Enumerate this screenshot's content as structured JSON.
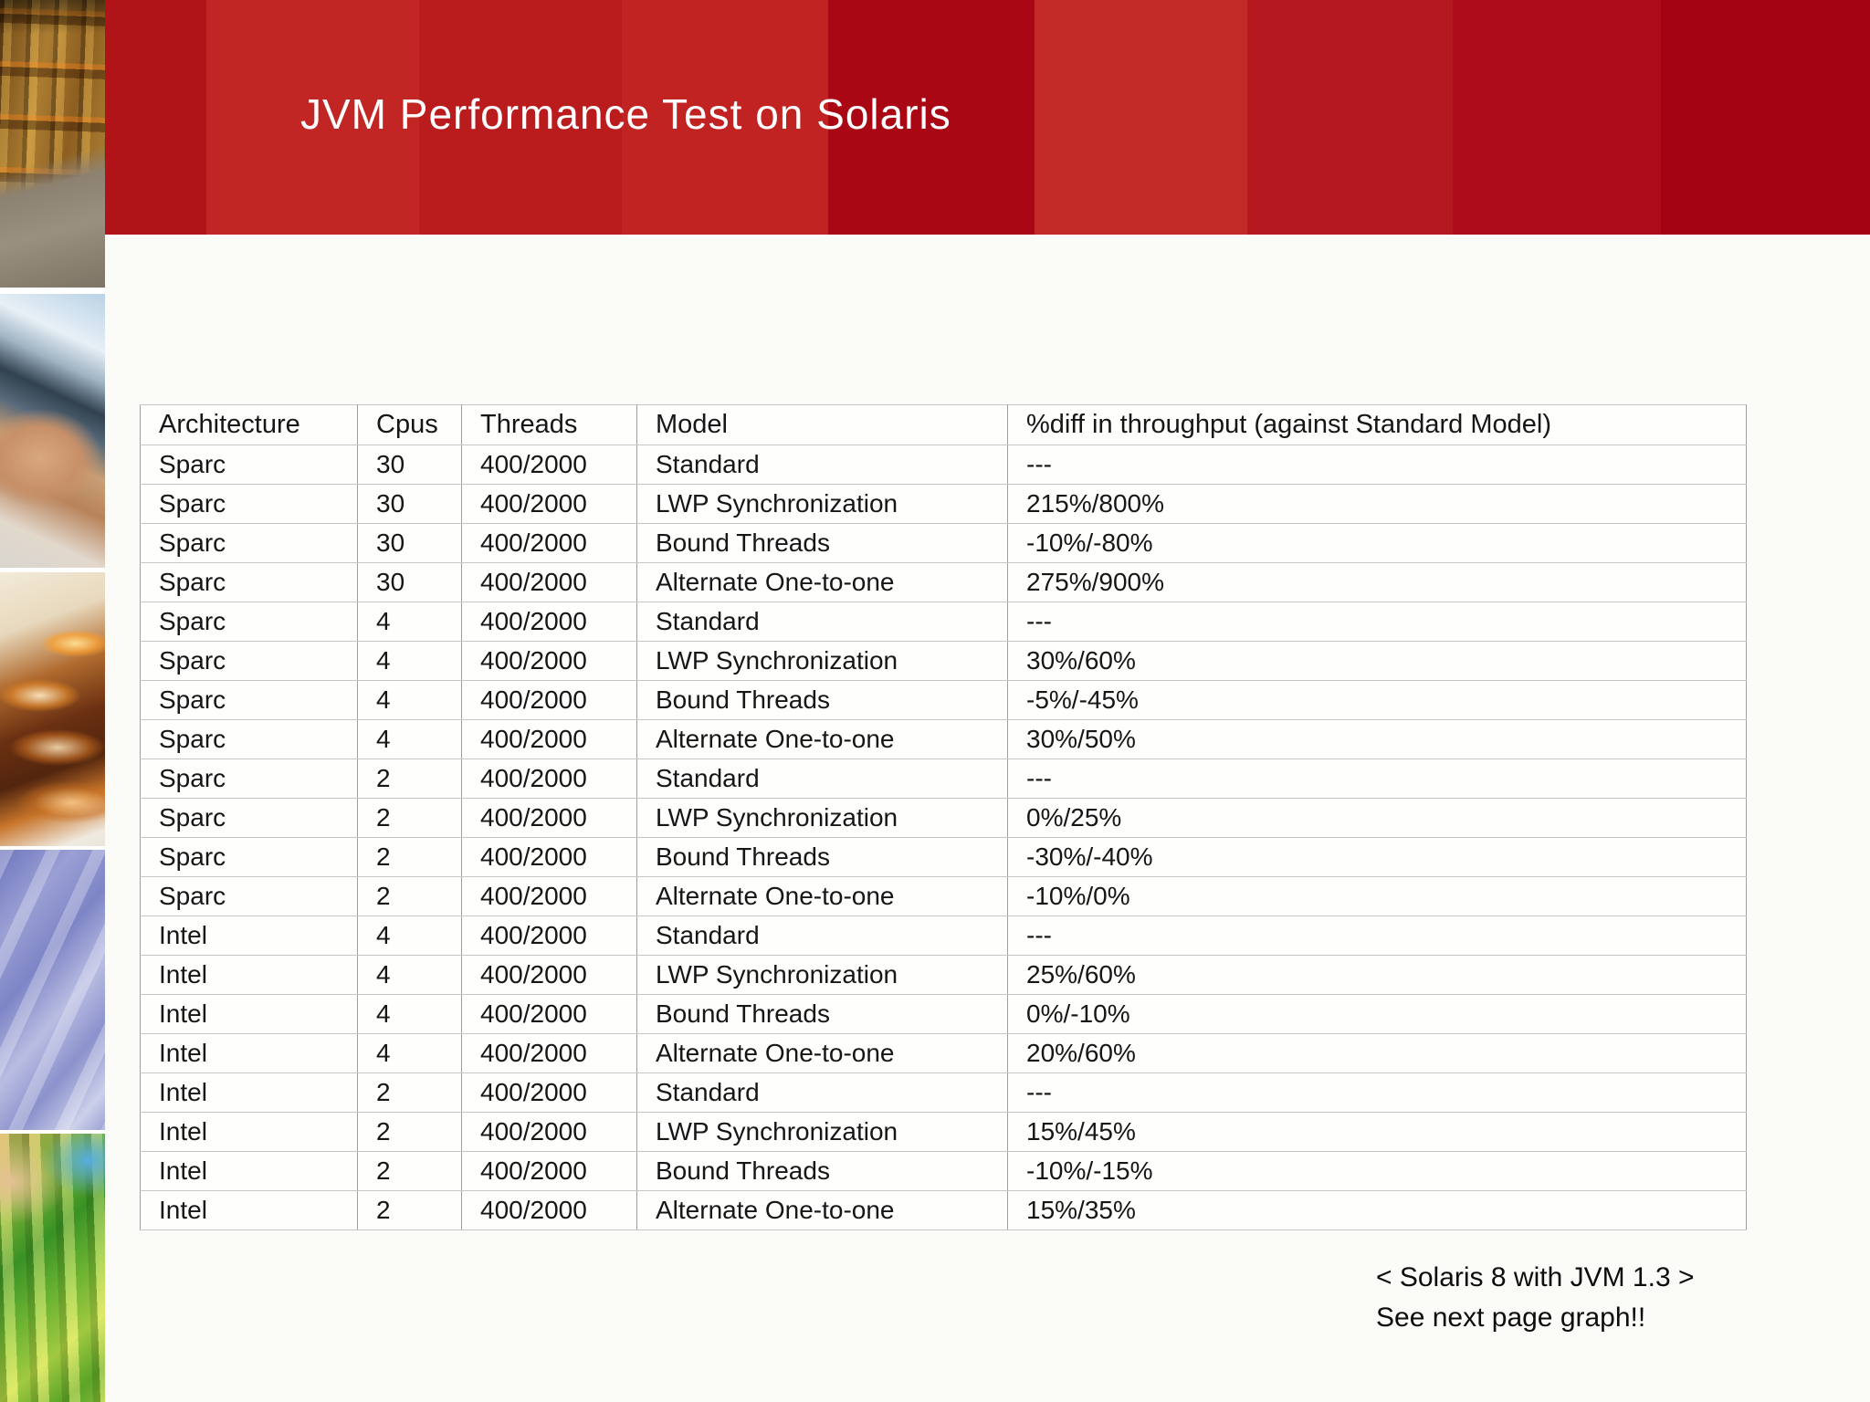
{
  "slide": {
    "title": "JVM Performance Test on Solaris",
    "note_line1": "< Solaris 8 with JVM 1.3 >",
    "note_line2": "See next page graph!!"
  },
  "table": {
    "headers": [
      "Architecture",
      "Cpus",
      "Threads",
      "Model",
      "%diff in throughput (against Standard Model)"
    ],
    "rows": [
      [
        "Sparc",
        "30",
        "400/2000",
        "Standard",
        "---"
      ],
      [
        "Sparc",
        "30",
        "400/2000",
        "LWP Synchronization",
        "215%/800%"
      ],
      [
        "Sparc",
        "30",
        "400/2000",
        "Bound Threads",
        "-10%/-80%"
      ],
      [
        "Sparc",
        "30",
        "400/2000",
        "Alternate One-to-one",
        "275%/900%"
      ],
      [
        "Sparc",
        "4",
        "400/2000",
        "Standard",
        "---"
      ],
      [
        "Sparc",
        "4",
        "400/2000",
        "LWP Synchronization",
        "30%/60%"
      ],
      [
        "Sparc",
        "4",
        "400/2000",
        "Bound Threads",
        "-5%/-45%"
      ],
      [
        "Sparc",
        "4",
        "400/2000",
        "Alternate One-to-one",
        "30%/50%"
      ],
      [
        "Sparc",
        "2",
        "400/2000",
        "Standard",
        "---"
      ],
      [
        "Sparc",
        "2",
        "400/2000",
        "LWP Synchronization",
        "0%/25%"
      ],
      [
        "Sparc",
        "2",
        "400/2000",
        "Bound Threads",
        "-30%/-40%"
      ],
      [
        "Sparc",
        "2",
        "400/2000",
        "Alternate One-to-one",
        "-10%/0%"
      ],
      [
        "Intel",
        "4",
        "400/2000",
        "Standard",
        "---"
      ],
      [
        "Intel",
        "4",
        "400/2000",
        "LWP Synchronization",
        "25%/60%"
      ],
      [
        "Intel",
        "4",
        "400/2000",
        "Bound Threads",
        "0%/-10%"
      ],
      [
        "Intel",
        "4",
        "400/2000",
        "Alternate One-to-one",
        "20%/60%"
      ],
      [
        "Intel",
        "2",
        "400/2000",
        "Standard",
        "---"
      ],
      [
        "Intel",
        "2",
        "400/2000",
        "LWP Synchronization",
        "15%/45%"
      ],
      [
        "Intel",
        "2",
        "400/2000",
        "Bound Threads",
        "-10%/-15%"
      ],
      [
        "Intel",
        "2",
        "400/2000",
        "Alternate One-to-one",
        "15%/35%"
      ]
    ]
  },
  "colors": {
    "banner_stripes": [
      "#b01419",
      "#c22624",
      "#ba1b1d",
      "#c02322",
      "#a80713",
      "#c12a27",
      "#b5191f",
      "#ae0c1a",
      "#a40314"
    ],
    "title_text": "#ffffff",
    "body_text": "#161616",
    "table_border_outer": "#8c8c8c",
    "table_border_vertical": "#9e9e9e",
    "table_border_horizontal": "#c6c6c6",
    "background": "#fbfbf8"
  },
  "sidebar": {
    "photos": [
      "warehouse-shelves-photo",
      "hand-with-device-photo",
      "glasses-on-keyboard-photo",
      "purple-fabric-photo",
      "laboratory-test-tubes-photo"
    ]
  }
}
